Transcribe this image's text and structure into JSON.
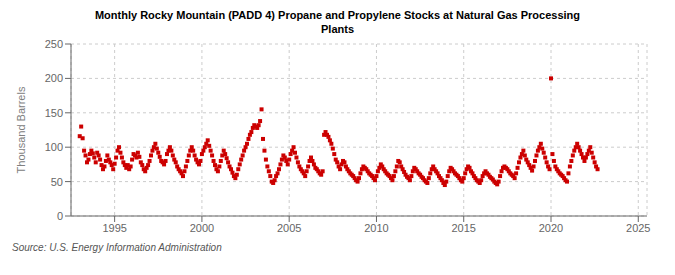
{
  "chart_data": {
    "type": "scatter",
    "title": "Monthly Rocky Mountain (PADD 4) Propane and Propylene Stocks at Natural Gas Processing\nPlants",
    "ylabel": "Thousand Barrels",
    "source": "Source: U.S. Energy Information Administration",
    "color": "#cc0000",
    "marker": "square",
    "grid": true,
    "xlim": [
      1992.5,
      2025.5
    ],
    "xticks": [
      1995,
      2000,
      2005,
      2010,
      2015,
      2020,
      2025
    ],
    "ylim": [
      0,
      250
    ],
    "yticks": [
      0,
      50,
      100,
      150,
      200,
      250
    ],
    "x": [
      1993.0,
      1993.083,
      1993.167,
      1993.25,
      1993.333,
      1993.417,
      1993.5,
      1993.583,
      1993.667,
      1993.75,
      1993.833,
      1993.917,
      1994.0,
      1994.083,
      1994.167,
      1994.25,
      1994.333,
      1994.417,
      1994.5,
      1994.583,
      1994.667,
      1994.75,
      1994.833,
      1994.917,
      1995.0,
      1995.083,
      1995.167,
      1995.25,
      1995.333,
      1995.417,
      1995.5,
      1995.583,
      1995.667,
      1995.75,
      1995.833,
      1995.917,
      1996.0,
      1996.083,
      1996.167,
      1996.25,
      1996.333,
      1996.417,
      1996.5,
      1996.583,
      1996.667,
      1996.75,
      1996.833,
      1996.917,
      1997.0,
      1997.083,
      1997.167,
      1997.25,
      1997.333,
      1997.417,
      1997.5,
      1997.583,
      1997.667,
      1997.75,
      1997.833,
      1997.917,
      1998.0,
      1998.083,
      1998.167,
      1998.25,
      1998.333,
      1998.417,
      1998.5,
      1998.583,
      1998.667,
      1998.75,
      1998.833,
      1998.917,
      1999.0,
      1999.083,
      1999.167,
      1999.25,
      1999.333,
      1999.417,
      1999.5,
      1999.583,
      1999.667,
      1999.75,
      1999.833,
      1999.917,
      2000.0,
      2000.083,
      2000.167,
      2000.25,
      2000.333,
      2000.417,
      2000.5,
      2000.583,
      2000.667,
      2000.75,
      2000.833,
      2000.917,
      2001.0,
      2001.083,
      2001.167,
      2001.25,
      2001.333,
      2001.417,
      2001.5,
      2001.583,
      2001.667,
      2001.75,
      2001.833,
      2001.917,
      2002.0,
      2002.083,
      2002.167,
      2002.25,
      2002.333,
      2002.417,
      2002.5,
      2002.583,
      2002.667,
      2002.75,
      2002.833,
      2002.917,
      2003.0,
      2003.083,
      2003.167,
      2003.25,
      2003.333,
      2003.417,
      2003.5,
      2003.583,
      2003.667,
      2003.75,
      2003.833,
      2003.917,
      2004.0,
      2004.083,
      2004.167,
      2004.25,
      2004.333,
      2004.417,
      2004.5,
      2004.583,
      2004.667,
      2004.75,
      2004.833,
      2004.917,
      2005.0,
      2005.083,
      2005.167,
      2005.25,
      2005.333,
      2005.417,
      2005.5,
      2005.583,
      2005.667,
      2005.75,
      2005.833,
      2005.917,
      2006.0,
      2006.083,
      2006.167,
      2006.25,
      2006.333,
      2006.417,
      2006.5,
      2006.583,
      2006.667,
      2006.75,
      2006.833,
      2006.917,
      2007.0,
      2007.083,
      2007.167,
      2007.25,
      2007.333,
      2007.417,
      2007.5,
      2007.583,
      2007.667,
      2007.75,
      2007.833,
      2007.917,
      2008.0,
      2008.083,
      2008.167,
      2008.25,
      2008.333,
      2008.417,
      2008.5,
      2008.583,
      2008.667,
      2008.75,
      2008.833,
      2008.917,
      2009.0,
      2009.083,
      2009.167,
      2009.25,
      2009.333,
      2009.417,
      2009.5,
      2009.583,
      2009.667,
      2009.75,
      2009.833,
      2009.917,
      2010.0,
      2010.083,
      2010.167,
      2010.25,
      2010.333,
      2010.417,
      2010.5,
      2010.583,
      2010.667,
      2010.75,
      2010.833,
      2010.917,
      2011.0,
      2011.083,
      2011.167,
      2011.25,
      2011.333,
      2011.417,
      2011.5,
      2011.583,
      2011.667,
      2011.75,
      2011.833,
      2011.917,
      2012.0,
      2012.083,
      2012.167,
      2012.25,
      2012.333,
      2012.417,
      2012.5,
      2012.583,
      2012.667,
      2012.75,
      2012.833,
      2012.917,
      2013.0,
      2013.083,
      2013.167,
      2013.25,
      2013.333,
      2013.417,
      2013.5,
      2013.583,
      2013.667,
      2013.75,
      2013.833,
      2013.917,
      2014.0,
      2014.083,
      2014.167,
      2014.25,
      2014.333,
      2014.417,
      2014.5,
      2014.583,
      2014.667,
      2014.75,
      2014.833,
      2014.917,
      2015.0,
      2015.083,
      2015.167,
      2015.25,
      2015.333,
      2015.417,
      2015.5,
      2015.583,
      2015.667,
      2015.75,
      2015.833,
      2015.917,
      2016.0,
      2016.083,
      2016.167,
      2016.25,
      2016.333,
      2016.417,
      2016.5,
      2016.583,
      2016.667,
      2016.75,
      2016.833,
      2016.917,
      2017.0,
      2017.083,
      2017.167,
      2017.25,
      2017.333,
      2017.417,
      2017.5,
      2017.583,
      2017.667,
      2017.75,
      2017.833,
      2017.917,
      2018.0,
      2018.083,
      2018.167,
      2018.25,
      2018.333,
      2018.417,
      2018.5,
      2018.583,
      2018.667,
      2018.75,
      2018.833,
      2018.917,
      2019.0,
      2019.083,
      2019.167,
      2019.25,
      2019.333,
      2019.417,
      2019.5,
      2019.583,
      2019.667,
      2019.75,
      2019.833,
      2019.917,
      2020.0,
      2020.083,
      2020.167,
      2020.25,
      2020.333,
      2020.417,
      2020.5,
      2020.583,
      2020.667,
      2020.75,
      2020.833,
      2020.917,
      2021.0,
      2021.083,
      2021.167,
      2021.25,
      2021.333,
      2021.417,
      2021.5,
      2021.583,
      2021.667,
      2021.75,
      2021.833,
      2021.917,
      2022.0,
      2022.083,
      2022.167,
      2022.25,
      2022.333,
      2022.417,
      2022.5,
      2022.583,
      2022.667
    ],
    "values": [
      116,
      130,
      113,
      95,
      88,
      78,
      82,
      90,
      95,
      91,
      85,
      78,
      92,
      88,
      82,
      74,
      68,
      72,
      80,
      88,
      82,
      78,
      74,
      68,
      76,
      85,
      95,
      100,
      92,
      85,
      78,
      74,
      70,
      74,
      68,
      72,
      82,
      90,
      88,
      85,
      92,
      86,
      78,
      74,
      68,
      65,
      70,
      74,
      80,
      88,
      95,
      100,
      105,
      98,
      92,
      86,
      80,
      78,
      75,
      80,
      90,
      95,
      100,
      95,
      88,
      82,
      78,
      72,
      68,
      65,
      62,
      58,
      65,
      72,
      80,
      88,
      95,
      100,
      95,
      88,
      82,
      78,
      75,
      80,
      90,
      95,
      100,
      105,
      110,
      102,
      95,
      88,
      80,
      74,
      68,
      65,
      72,
      80,
      88,
      95,
      90,
      84,
      78,
      72,
      68,
      63,
      58,
      55,
      60,
      68,
      75,
      82,
      88,
      95,
      100,
      105,
      112,
      118,
      122,
      128,
      132,
      130,
      128,
      132,
      138,
      155,
      112,
      95,
      82,
      72,
      65,
      58,
      50,
      48,
      52,
      58,
      62,
      68,
      75,
      82,
      88,
      85,
      80,
      75,
      82,
      90,
      95,
      100,
      92,
      85,
      78,
      72,
      68,
      65,
      62,
      58,
      65,
      72,
      80,
      85,
      80,
      75,
      70,
      68,
      65,
      62,
      60,
      65,
      118,
      122,
      118,
      115,
      110,
      105,
      98,
      90,
      82,
      78,
      72,
      68,
      75,
      80,
      78,
      72,
      68,
      65,
      62,
      60,
      58,
      55,
      52,
      50,
      55,
      62,
      68,
      72,
      70,
      68,
      65,
      62,
      60,
      58,
      55,
      52,
      58,
      65,
      70,
      75,
      72,
      68,
      65,
      62,
      60,
      58,
      55,
      52,
      58,
      65,
      72,
      80,
      78,
      72,
      68,
      64,
      60,
      57,
      55,
      52,
      58,
      65,
      70,
      68,
      65,
      62,
      60,
      57,
      55,
      52,
      50,
      48,
      55,
      62,
      68,
      72,
      68,
      65,
      62,
      58,
      55,
      52,
      48,
      45,
      50,
      58,
      65,
      70,
      68,
      65,
      62,
      60,
      58,
      55,
      52,
      50,
      55,
      62,
      68,
      72,
      70,
      65,
      62,
      58,
      55,
      52,
      50,
      48,
      52,
      58,
      62,
      65,
      62,
      60,
      57,
      55,
      53,
      50,
      48,
      46,
      50,
      58,
      65,
      70,
      72,
      70,
      68,
      65,
      62,
      60,
      58,
      55,
      62,
      70,
      78,
      85,
      90,
      95,
      88,
      82,
      78,
      74,
      70,
      66,
      72,
      80,
      88,
      95,
      100,
      105,
      98,
      92,
      85,
      78,
      72,
      68,
      200,
      90,
      80,
      72,
      68,
      65,
      62,
      60,
      58,
      55,
      52,
      50,
      62,
      72,
      80,
      88,
      95,
      100,
      105,
      100,
      95,
      90,
      85,
      80,
      85,
      90,
      95,
      100,
      92,
      85,
      78,
      72,
      68
    ]
  }
}
